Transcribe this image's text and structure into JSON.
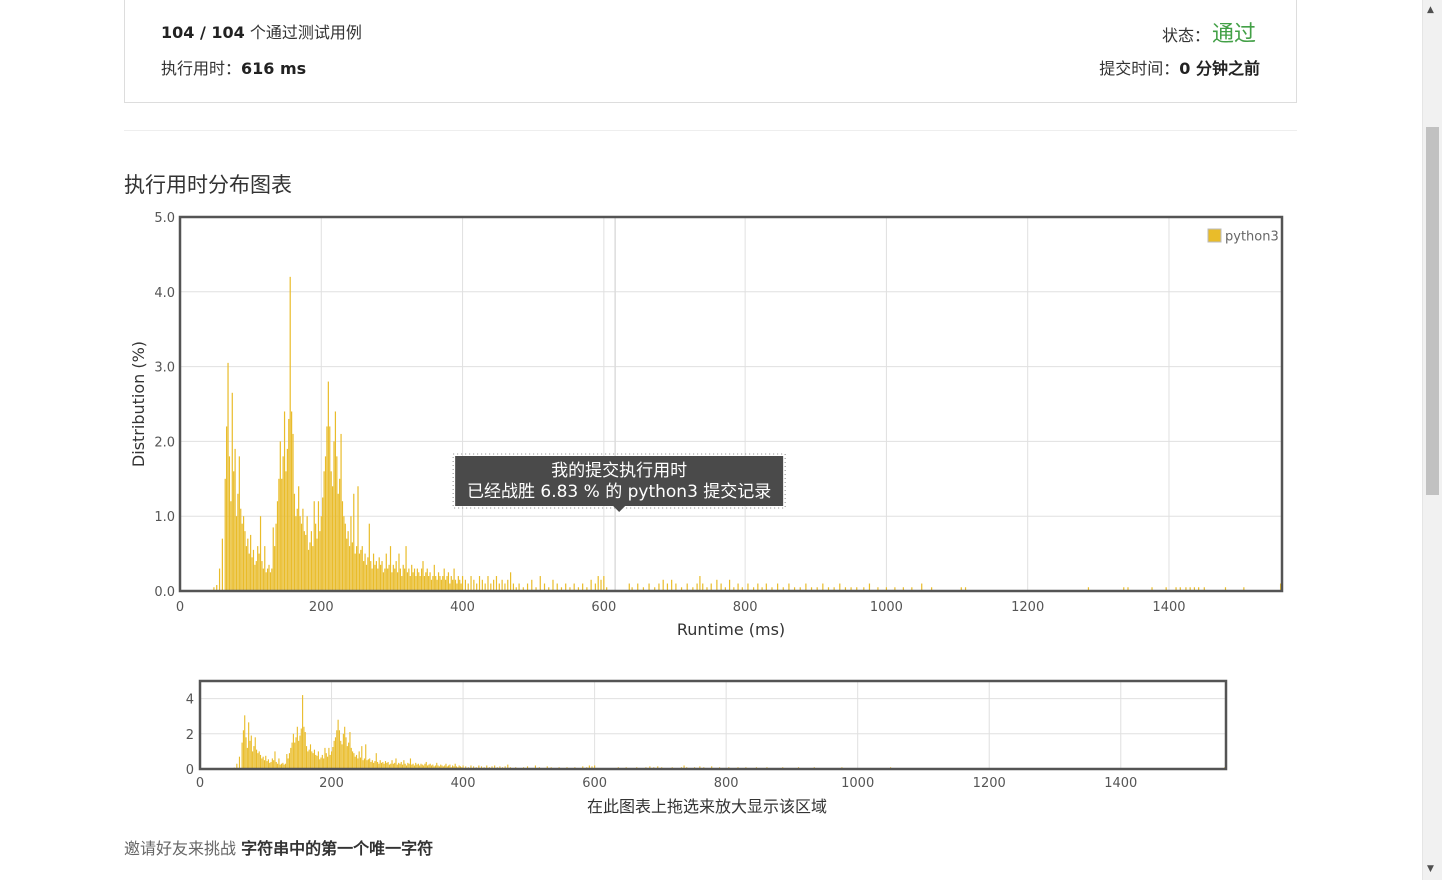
{
  "result": {
    "cases_passed": "104 / 104",
    "cases_suffix": " 个通过测试用例",
    "runtime_label": "执行用时：",
    "runtime_value": "616 ms",
    "status_label": "状态：",
    "status_value": "通过",
    "submit_time_label": "提交时间：",
    "submit_time_value": "0 分钟之前"
  },
  "section_title": "执行用时分布图表",
  "chart_data": {
    "type": "bar",
    "title": "",
    "xlabel": "Runtime (ms)",
    "ylabel": "Distribution (%)",
    "xlim": [
      0,
      1560
    ],
    "ylim": [
      0,
      5
    ],
    "xticks": [
      "0",
      "200",
      "400",
      "600",
      "800",
      "1000",
      "1200",
      "1400"
    ],
    "yticks": [
      "0.0",
      "1.0",
      "2.0",
      "3.0",
      "4.0",
      "5.0"
    ],
    "legend": "top-right",
    "grid": true,
    "series": [
      {
        "name": "python3",
        "color": "#e9bc2a",
        "points": [
          [
            48,
            0.05
          ],
          [
            52,
            0.08
          ],
          [
            56,
            0.3
          ],
          [
            60,
            0.7
          ],
          [
            64,
            1.5
          ],
          [
            66,
            2.2
          ],
          [
            68,
            3.05
          ],
          [
            70,
            1.8
          ],
          [
            72,
            1.2
          ],
          [
            74,
            2.65
          ],
          [
            76,
            1.6
          ],
          [
            78,
            1.9
          ],
          [
            80,
            1.0
          ],
          [
            82,
            1.3
          ],
          [
            84,
            1.8
          ],
          [
            86,
            1.1
          ],
          [
            88,
            0.9
          ],
          [
            90,
            1.0
          ],
          [
            92,
            0.8
          ],
          [
            94,
            0.6
          ],
          [
            96,
            0.7
          ],
          [
            98,
            0.5
          ],
          [
            100,
            0.75
          ],
          [
            102,
            0.45
          ],
          [
            104,
            0.55
          ],
          [
            106,
            0.35
          ],
          [
            108,
            0.4
          ],
          [
            110,
            0.6
          ],
          [
            112,
            0.5
          ],
          [
            114,
            1.0
          ],
          [
            116,
            0.4
          ],
          [
            118,
            0.3
          ],
          [
            120,
            0.6
          ],
          [
            122,
            0.25
          ],
          [
            124,
            0.3
          ],
          [
            126,
            0.35
          ],
          [
            128,
            0.25
          ],
          [
            130,
            0.3
          ],
          [
            132,
            0.85
          ],
          [
            134,
            0.6
          ],
          [
            136,
            0.9
          ],
          [
            138,
            1.2
          ],
          [
            140,
            1.5
          ],
          [
            142,
            2.0
          ],
          [
            144,
            1.5
          ],
          [
            146,
            1.8
          ],
          [
            148,
            2.4
          ],
          [
            150,
            1.6
          ],
          [
            152,
            1.9
          ],
          [
            154,
            2.3
          ],
          [
            156,
            4.2
          ],
          [
            158,
            2.4
          ],
          [
            160,
            2.1
          ],
          [
            162,
            1.3
          ],
          [
            164,
            1.0
          ],
          [
            166,
            1.1
          ],
          [
            168,
            1.4
          ],
          [
            170,
            1.0
          ],
          [
            172,
            0.9
          ],
          [
            174,
            1.1
          ],
          [
            176,
            0.8
          ],
          [
            178,
            0.75
          ],
          [
            180,
            1.0
          ],
          [
            182,
            0.55
          ],
          [
            184,
            0.65
          ],
          [
            186,
            0.8
          ],
          [
            188,
            0.6
          ],
          [
            190,
            1.2
          ],
          [
            192,
            0.9
          ],
          [
            194,
            0.7
          ],
          [
            196,
            1.2
          ],
          [
            198,
            0.8
          ],
          [
            200,
            1.0
          ],
          [
            202,
            1.25
          ],
          [
            204,
            1.6
          ],
          [
            206,
            1.8
          ],
          [
            208,
            2.2
          ],
          [
            210,
            2.8
          ],
          [
            212,
            2.2
          ],
          [
            214,
            1.6
          ],
          [
            216,
            1.4
          ],
          [
            218,
            2.0
          ],
          [
            220,
            2.4
          ],
          [
            222,
            1.8
          ],
          [
            224,
            1.3
          ],
          [
            226,
            1.5
          ],
          [
            228,
            2.1
          ],
          [
            230,
            1.2
          ],
          [
            232,
            1.0
          ],
          [
            234,
            0.9
          ],
          [
            236,
            0.7
          ],
          [
            238,
            0.8
          ],
          [
            240,
            0.6
          ],
          [
            242,
            1.0
          ],
          [
            244,
            0.65
          ],
          [
            246,
            1.3
          ],
          [
            248,
            0.5
          ],
          [
            250,
            0.6
          ],
          [
            252,
            1.4
          ],
          [
            254,
            0.5
          ],
          [
            256,
            0.55
          ],
          [
            258,
            0.6
          ],
          [
            260,
            0.4
          ],
          [
            262,
            0.5
          ],
          [
            264,
            0.35
          ],
          [
            266,
            0.45
          ],
          [
            268,
            0.9
          ],
          [
            270,
            0.4
          ],
          [
            272,
            0.3
          ],
          [
            274,
            0.5
          ],
          [
            276,
            0.35
          ],
          [
            278,
            0.4
          ],
          [
            280,
            0.3
          ],
          [
            282,
            0.45
          ],
          [
            284,
            0.35
          ],
          [
            286,
            0.4
          ],
          [
            288,
            0.25
          ],
          [
            290,
            0.3
          ],
          [
            292,
            0.5
          ],
          [
            294,
            0.3
          ],
          [
            296,
            0.35
          ],
          [
            298,
            0.6
          ],
          [
            300,
            0.25
          ],
          [
            302,
            0.35
          ],
          [
            304,
            0.3
          ],
          [
            306,
            0.4
          ],
          [
            308,
            0.25
          ],
          [
            310,
            0.5
          ],
          [
            312,
            0.3
          ],
          [
            314,
            0.2
          ],
          [
            316,
            0.35
          ],
          [
            318,
            0.3
          ],
          [
            320,
            0.6
          ],
          [
            322,
            0.25
          ],
          [
            324,
            0.3
          ],
          [
            326,
            0.2
          ],
          [
            328,
            0.35
          ],
          [
            330,
            0.25
          ],
          [
            332,
            0.3
          ],
          [
            334,
            0.2
          ],
          [
            336,
            0.3
          ],
          [
            338,
            0.25
          ],
          [
            340,
            0.2
          ],
          [
            342,
            0.3
          ],
          [
            344,
            0.4
          ],
          [
            346,
            0.2
          ],
          [
            348,
            0.25
          ],
          [
            350,
            0.3
          ],
          [
            352,
            0.2
          ],
          [
            354,
            0.25
          ],
          [
            356,
            0.15
          ],
          [
            358,
            0.2
          ],
          [
            360,
            0.35
          ],
          [
            362,
            0.2
          ],
          [
            364,
            0.15
          ],
          [
            366,
            0.25
          ],
          [
            368,
            0.2
          ],
          [
            370,
            0.15
          ],
          [
            372,
            0.2
          ],
          [
            374,
            0.3
          ],
          [
            376,
            0.15
          ],
          [
            378,
            0.2
          ],
          [
            380,
            0.25
          ],
          [
            382,
            0.1
          ],
          [
            384,
            0.2
          ],
          [
            386,
            0.15
          ],
          [
            388,
            0.3
          ],
          [
            390,
            0.15
          ],
          [
            392,
            0.1
          ],
          [
            394,
            0.2
          ],
          [
            396,
            0.15
          ],
          [
            398,
            0.1
          ],
          [
            400,
            0.2
          ],
          [
            404,
            0.15
          ],
          [
            408,
            0.1
          ],
          [
            412,
            0.2
          ],
          [
            416,
            0.15
          ],
          [
            420,
            0.1
          ],
          [
            424,
            0.2
          ],
          [
            428,
            0.15
          ],
          [
            432,
            0.1
          ],
          [
            436,
            0.2
          ],
          [
            440,
            0.1
          ],
          [
            444,
            0.15
          ],
          [
            448,
            0.2
          ],
          [
            452,
            0.1
          ],
          [
            456,
            0.15
          ],
          [
            460,
            0.1
          ],
          [
            464,
            0.15
          ],
          [
            468,
            0.25
          ],
          [
            472,
            0.1
          ],
          [
            476,
            0.05
          ],
          [
            480,
            0.1
          ],
          [
            486,
            0.05
          ],
          [
            492,
            0.1
          ],
          [
            498,
            0.15
          ],
          [
            504,
            0.05
          ],
          [
            510,
            0.2
          ],
          [
            516,
            0.1
          ],
          [
            522,
            0.05
          ],
          [
            528,
            0.15
          ],
          [
            534,
            0.1
          ],
          [
            540,
            0.05
          ],
          [
            546,
            0.1
          ],
          [
            552,
            0.05
          ],
          [
            558,
            0.1
          ],
          [
            564,
            0.05
          ],
          [
            570,
            0.1
          ],
          [
            576,
            0.05
          ],
          [
            582,
            0.15
          ],
          [
            588,
            0.1
          ],
          [
            592,
            0.2
          ],
          [
            596,
            0.15
          ],
          [
            600,
            0.2
          ],
          [
            604,
            0.05
          ],
          [
            636,
            0.1
          ],
          [
            640,
            0.05
          ],
          [
            648,
            0.1
          ],
          [
            656,
            0.05
          ],
          [
            664,
            0.1
          ],
          [
            672,
            0.05
          ],
          [
            678,
            0.1
          ],
          [
            684,
            0.15
          ],
          [
            690,
            0.1
          ],
          [
            696,
            0.15
          ],
          [
            702,
            0.1
          ],
          [
            710,
            0.05
          ],
          [
            718,
            0.1
          ],
          [
            726,
            0.05
          ],
          [
            732,
            0.1
          ],
          [
            736,
            0.2
          ],
          [
            740,
            0.1
          ],
          [
            746,
            0.05
          ],
          [
            752,
            0.1
          ],
          [
            760,
            0.15
          ],
          [
            766,
            0.1
          ],
          [
            772,
            0.05
          ],
          [
            778,
            0.15
          ],
          [
            784,
            0.05
          ],
          [
            790,
            0.1
          ],
          [
            796,
            0.05
          ],
          [
            804,
            0.1
          ],
          [
            812,
            0.05
          ],
          [
            818,
            0.1
          ],
          [
            824,
            0.05
          ],
          [
            830,
            0.1
          ],
          [
            838,
            0.05
          ],
          [
            846,
            0.1
          ],
          [
            854,
            0.05
          ],
          [
            862,
            0.1
          ],
          [
            870,
            0.05
          ],
          [
            878,
            0.05
          ],
          [
            886,
            0.1
          ],
          [
            894,
            0.05
          ],
          [
            902,
            0.05
          ],
          [
            910,
            0.1
          ],
          [
            918,
            0.05
          ],
          [
            926,
            0.05
          ],
          [
            934,
            0.1
          ],
          [
            942,
            0.05
          ],
          [
            950,
            0.05
          ],
          [
            958,
            0.05
          ],
          [
            968,
            0.05
          ],
          [
            976,
            0.1
          ],
          [
            988,
            0.05
          ],
          [
            1000,
            0.05
          ],
          [
            1012,
            0.05
          ],
          [
            1024,
            0.05
          ],
          [
            1036,
            0.05
          ],
          [
            1050,
            0.1
          ],
          [
            1064,
            0.05
          ],
          [
            1106,
            0.05
          ],
          [
            1112,
            0.05
          ],
          [
            1286,
            0.05
          ],
          [
            1336,
            0.05
          ],
          [
            1342,
            0.05
          ],
          [
            1376,
            0.05
          ],
          [
            1396,
            0.05
          ],
          [
            1410,
            0.05
          ],
          [
            1416,
            0.05
          ],
          [
            1424,
            0.05
          ],
          [
            1430,
            0.05
          ],
          [
            1436,
            0.05
          ],
          [
            1442,
            0.05
          ],
          [
            1450,
            0.05
          ],
          [
            1480,
            0.05
          ],
          [
            1506,
            0.05
          ],
          [
            1558,
            0.1
          ]
        ]
      }
    ],
    "marker": {
      "x": 616,
      "text_line1": "我的提交执行用时",
      "text_line2": "已经战胜 6.83 % 的 python3 提交记录"
    },
    "navigator": {
      "yticks": [
        "0",
        "2",
        "4"
      ],
      "ylim": [
        0,
        5
      ],
      "caption": "在此图表上拖选来放大显示该区域"
    }
  },
  "invite": {
    "prefix": "邀请好友来挑战 ",
    "problem_name": "字符串中的第一个唯一字符"
  }
}
